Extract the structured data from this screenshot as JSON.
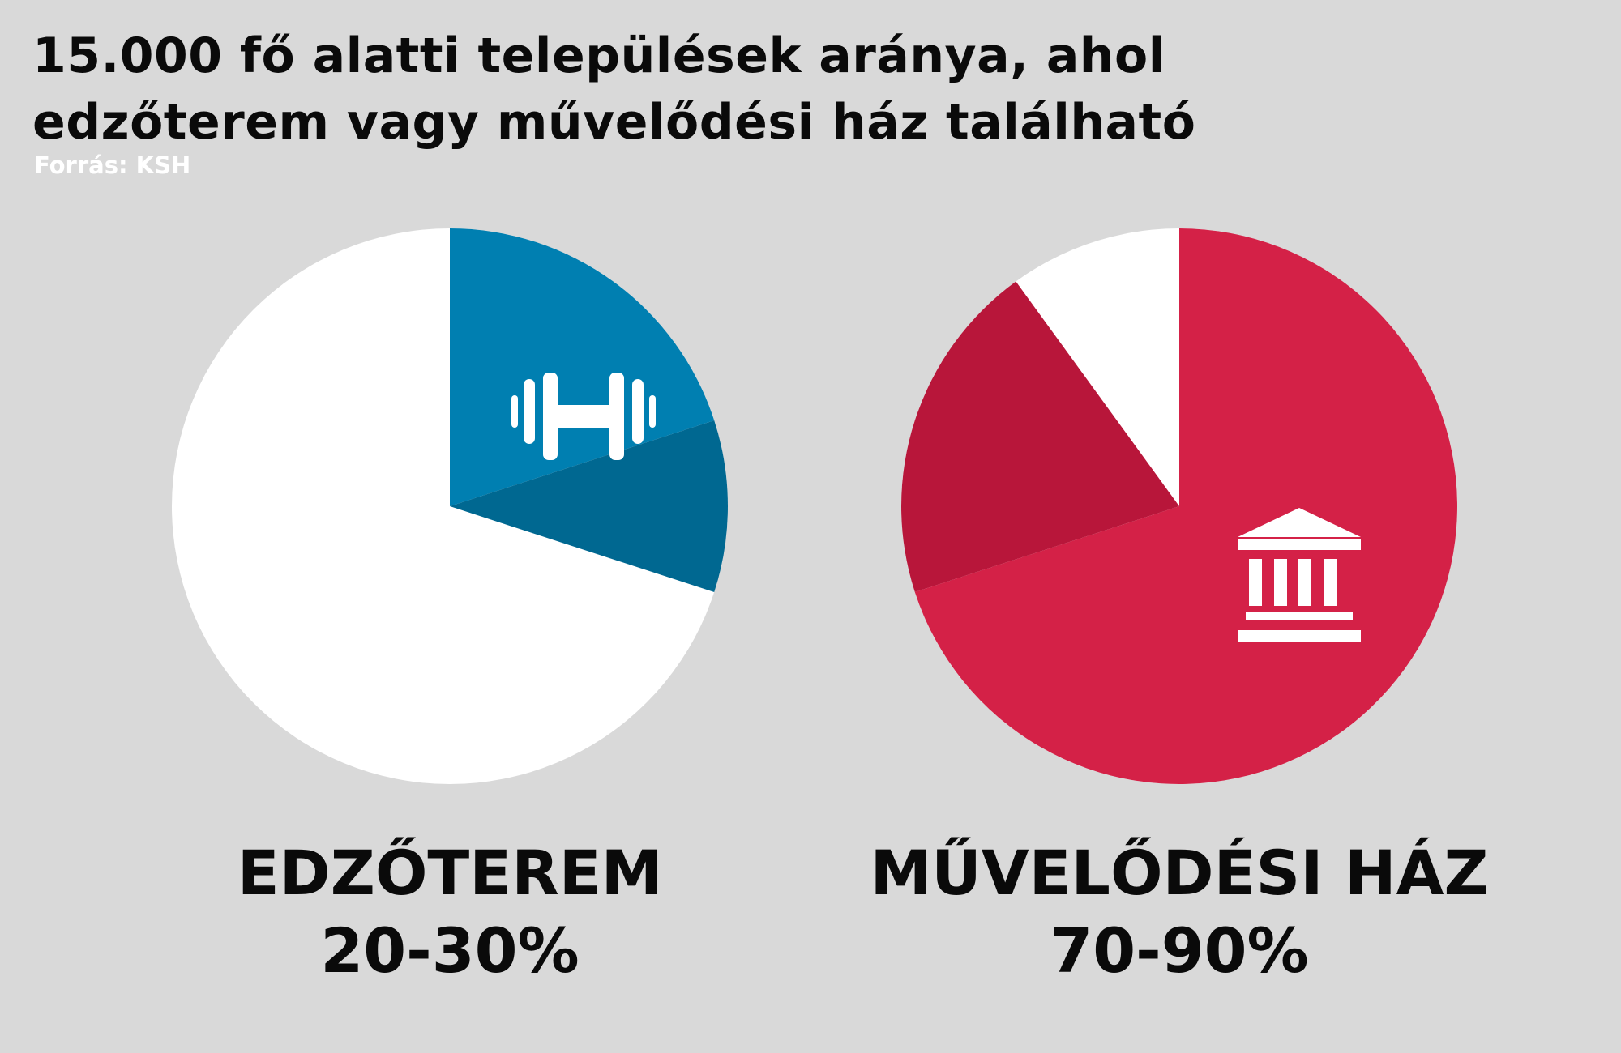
{
  "header": {
    "title_line1": "15.000 fő alatti települések aránya, ahol",
    "title_line2": "edzőterem vagy művelődési ház található",
    "source": "Forrás: KSH"
  },
  "chart_data": [
    {
      "type": "pie",
      "category": "EDZŐTEREM",
      "range_label": "20-30%",
      "range": [
        20,
        30
      ],
      "icon": "dumbbell-icon",
      "colors": {
        "range_low": "#007fb1",
        "range_high": "#006891",
        "rest": "#ffffff"
      }
    },
    {
      "type": "pie",
      "category": "MŰVELŐDÉSI HÁZ",
      "range_label": "70-90%",
      "range": [
        70,
        90
      ],
      "icon": "cultural-house-icon",
      "colors": {
        "range_low": "#d42147",
        "range_high": "#b8163a",
        "rest": "#ffffff"
      }
    }
  ]
}
